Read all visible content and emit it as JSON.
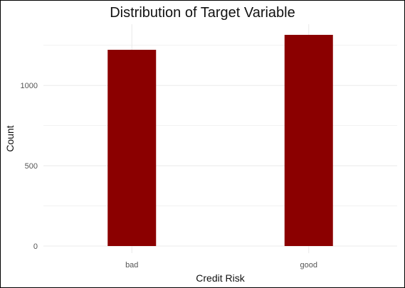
{
  "chart_data": {
    "type": "bar",
    "title": "Distribution of Target Variable",
    "xlabel": "Credit Risk",
    "ylabel": "Count",
    "categories": [
      "bad",
      "good"
    ],
    "values": [
      1222,
      1315
    ],
    "ylim": [
      0,
      1380
    ],
    "yticks": [
      0,
      500,
      1000
    ],
    "grid": true,
    "bar_color": "#8B0000",
    "grid_color": "#EBEBEB"
  }
}
